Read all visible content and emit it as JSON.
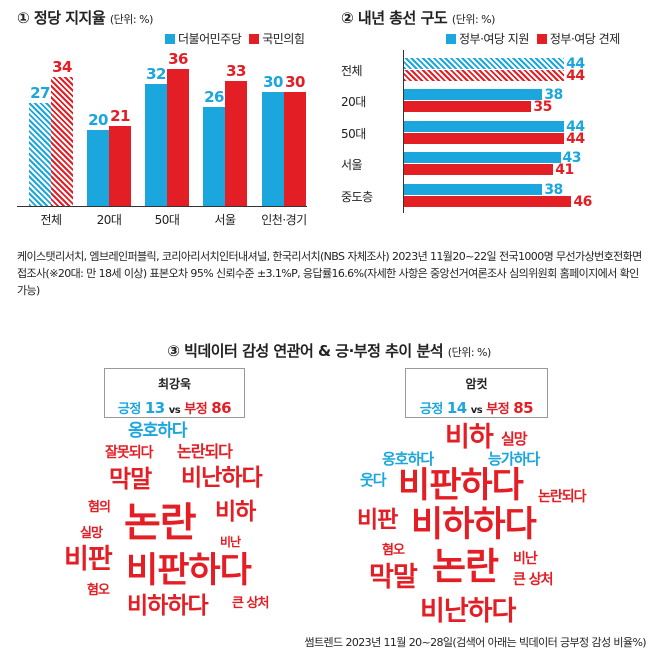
{
  "colors": {
    "blue": "#1ba6dd",
    "red": "#e31e25"
  },
  "chart_data": [
    {
      "type": "bar",
      "title": "① 정당 지지율",
      "unit": "(단위: %)",
      "categories": [
        "전체",
        "20대",
        "50대",
        "서울",
        "인천·경기"
      ],
      "series": [
        {
          "name": "더불어민주당",
          "values": [
            27,
            20,
            32,
            26,
            30
          ]
        },
        {
          "name": "국민의힘",
          "values": [
            34,
            21,
            36,
            33,
            30
          ]
        }
      ],
      "ylim": [
        0,
        40
      ],
      "hatched_category": "전체"
    },
    {
      "type": "bar",
      "orientation": "horizontal",
      "title": "② 내년 총선 구도",
      "unit": "(단위: %)",
      "categories": [
        "전체",
        "20대",
        "50대",
        "서울",
        "중도층"
      ],
      "series": [
        {
          "name": "정부·여당 지원",
          "values": [
            44,
            38,
            44,
            43,
            38
          ]
        },
        {
          "name": "정부·여당 견제",
          "values": [
            44,
            35,
            44,
            41,
            46
          ]
        }
      ],
      "xlim": [
        0,
        50
      ],
      "hatched_category": "전체"
    }
  ],
  "note": "케이스탯리서치, 엠브레인퍼블릭, 코리아리서치인터내셔널, 한국리서치(NBS 자체조사) 2023년 11월20~22일 전국1000명 무선가상번호전화면접조사(※20대: 만 18세 이상) 표본오차 95% 신뢰수준 ±3.1%P, 응답률16.6%(자세한 사항은 중앙선거여론조사 심의위원회 홈페이지에서 확인 가능)",
  "section3": {
    "title": "③ 빅데이터 감성 연관어 & 긍·부정 추이 분석",
    "unit": "(단위: %)",
    "left": {
      "name": "최강욱",
      "pos_label": "긍정",
      "pos": "13",
      "vs": "vs",
      "neg_label": "부정",
      "neg": "86",
      "words": [
        {
          "t": "옹호하다",
          "c": "blue"
        },
        {
          "t": "잘못되다",
          "c": "red"
        },
        {
          "t": "논란되다",
          "c": "red"
        },
        {
          "t": "막말",
          "c": "red"
        },
        {
          "t": "비난하다",
          "c": "red"
        },
        {
          "t": "혐의",
          "c": "red"
        },
        {
          "t": "논란",
          "c": "red"
        },
        {
          "t": "비하",
          "c": "red"
        },
        {
          "t": "실망",
          "c": "red"
        },
        {
          "t": "비난",
          "c": "red"
        },
        {
          "t": "비판",
          "c": "red"
        },
        {
          "t": "비판하다",
          "c": "red"
        },
        {
          "t": "혐오",
          "c": "red"
        },
        {
          "t": "비하하다",
          "c": "red"
        },
        {
          "t": "큰 상처",
          "c": "red"
        }
      ]
    },
    "right": {
      "name": "암컷",
      "pos_label": "긍정",
      "pos": "14",
      "vs": "vs",
      "neg_label": "부정",
      "neg": "85",
      "words": [
        {
          "t": "비하",
          "c": "red"
        },
        {
          "t": "실망",
          "c": "red"
        },
        {
          "t": "옹호하다",
          "c": "blue"
        },
        {
          "t": "능가하다",
          "c": "blue"
        },
        {
          "t": "웃다",
          "c": "blue"
        },
        {
          "t": "비판하다",
          "c": "red"
        },
        {
          "t": "논란되다",
          "c": "red"
        },
        {
          "t": "비판",
          "c": "red"
        },
        {
          "t": "비하하다",
          "c": "red"
        },
        {
          "t": "혐오",
          "c": "red"
        },
        {
          "t": "논란",
          "c": "red"
        },
        {
          "t": "비난",
          "c": "red"
        },
        {
          "t": "막말",
          "c": "red"
        },
        {
          "t": "큰 상처",
          "c": "red"
        },
        {
          "t": "비난하다",
          "c": "red"
        }
      ]
    }
  },
  "source": "썸트렌드 2023년 11월 20~28일(검색어 아래는 빅데이터 긍부정 감성 비율%)"
}
